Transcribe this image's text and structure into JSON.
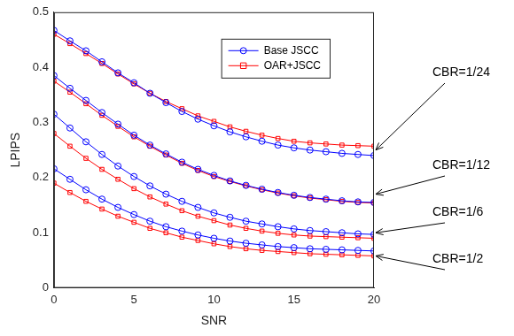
{
  "chart_data": {
    "type": "line",
    "x_label": "SNR",
    "y_label": "LPIPS",
    "x": [
      0,
      1,
      2,
      3,
      4,
      5,
      6,
      7,
      8,
      9,
      10,
      11,
      12,
      13,
      14,
      15,
      16,
      17,
      18,
      19,
      20
    ],
    "xlim": [
      0,
      20
    ],
    "xticks": [
      0,
      5,
      10,
      15,
      20
    ],
    "ylim": [
      0,
      0.5
    ],
    "yticks": [
      0,
      0.1,
      0.2,
      0.3,
      0.4,
      0.5
    ],
    "grid": false,
    "legend": "upper right",
    "series": [
      {
        "name": "Base JSCC",
        "color": "#0000ff",
        "marker": "circle",
        "values": [
          0.467,
          0.448,
          0.43,
          0.41,
          0.39,
          0.372,
          0.353,
          0.336,
          0.32,
          0.306,
          0.294,
          0.283,
          0.274,
          0.266,
          0.259,
          0.254,
          0.25,
          0.247,
          0.244,
          0.242,
          0.24
        ]
      },
      {
        "name": "OAR+JSCC",
        "color": "#ff0000",
        "marker": "square",
        "values": [
          0.46,
          0.443,
          0.425,
          0.407,
          0.388,
          0.37,
          0.353,
          0.338,
          0.325,
          0.312,
          0.302,
          0.292,
          0.284,
          0.277,
          0.271,
          0.266,
          0.263,
          0.261,
          0.259,
          0.258,
          0.257
        ]
      },
      {
        "name": "Base JSCC",
        "color": "#0000ff",
        "marker": "circle",
        "values": [
          0.385,
          0.362,
          0.34,
          0.318,
          0.297,
          0.277,
          0.259,
          0.243,
          0.228,
          0.215,
          0.204,
          0.194,
          0.186,
          0.179,
          0.173,
          0.168,
          0.164,
          0.161,
          0.158,
          0.156,
          0.155
        ]
      },
      {
        "name": "OAR+JSCC",
        "color": "#ff0000",
        "marker": "square",
        "values": [
          0.375,
          0.355,
          0.334,
          0.313,
          0.293,
          0.274,
          0.257,
          0.241,
          0.226,
          0.213,
          0.202,
          0.193,
          0.185,
          0.178,
          0.172,
          0.167,
          0.163,
          0.16,
          0.157,
          0.155,
          0.154
        ]
      },
      {
        "name": "Base JSCC",
        "color": "#0000ff",
        "marker": "circle",
        "values": [
          0.315,
          0.29,
          0.265,
          0.242,
          0.221,
          0.202,
          0.185,
          0.17,
          0.157,
          0.146,
          0.136,
          0.128,
          0.121,
          0.116,
          0.111,
          0.107,
          0.104,
          0.102,
          0.1,
          0.098,
          0.097
        ]
      },
      {
        "name": "OAR+JSCC",
        "color": "#ff0000",
        "marker": "square",
        "values": [
          0.28,
          0.257,
          0.235,
          0.215,
          0.197,
          0.18,
          0.165,
          0.152,
          0.14,
          0.13,
          0.122,
          0.114,
          0.108,
          0.103,
          0.099,
          0.096,
          0.094,
          0.093,
          0.092,
          0.091,
          0.09
        ]
      },
      {
        "name": "Base JSCC",
        "color": "#0000ff",
        "marker": "circle",
        "values": [
          0.216,
          0.197,
          0.178,
          0.161,
          0.146,
          0.133,
          0.121,
          0.111,
          0.103,
          0.096,
          0.09,
          0.085,
          0.081,
          0.078,
          0.075,
          0.073,
          0.071,
          0.07,
          0.069,
          0.068,
          0.067
        ]
      },
      {
        "name": "OAR+JSCC",
        "color": "#ff0000",
        "marker": "square",
        "values": [
          0.19,
          0.173,
          0.157,
          0.143,
          0.13,
          0.119,
          0.108,
          0.1,
          0.092,
          0.086,
          0.08,
          0.075,
          0.071,
          0.068,
          0.066,
          0.064,
          0.062,
          0.061,
          0.06,
          0.059,
          0.058
        ]
      }
    ],
    "annotations": [
      {
        "text": "CBR=1/24",
        "x": 20,
        "y": 0.25
      },
      {
        "text": "CBR=1/12",
        "x": 20,
        "y": 0.17
      },
      {
        "text": "CBR=1/6",
        "x": 20,
        "y": 0.1
      },
      {
        "text": "CBR=1/2",
        "x": 20,
        "y": 0.058
      }
    ]
  }
}
